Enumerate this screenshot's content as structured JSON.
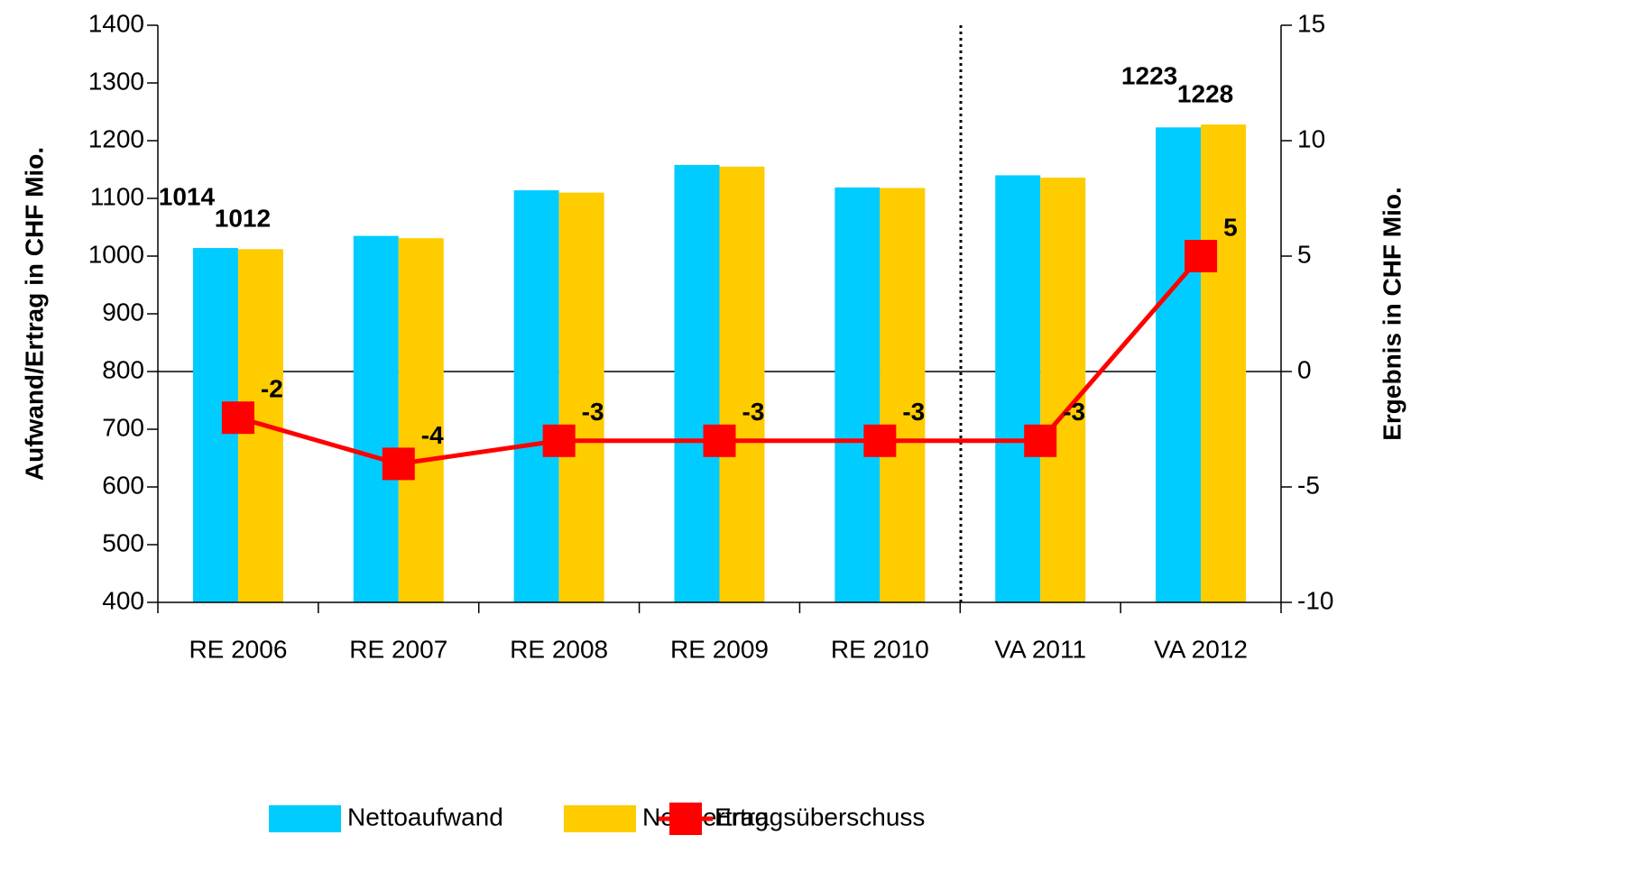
{
  "chart_data": {
    "type": "bar",
    "y_label": "Aufwand/Ertrag in CHF Mio.",
    "y2_label": "Ergebnis in CHF Mio.",
    "categories": [
      "RE 2006",
      "RE 2007",
      "RE 2008",
      "RE 2009",
      "RE 2010",
      "VA 2011",
      "VA 2012"
    ],
    "series": [
      {
        "name": "Nettoaufwand",
        "color": "#00ccff",
        "values": [
          1014,
          1035,
          1114,
          1158,
          1119,
          1140,
          1223
        ],
        "value_labels": [
          "1014",
          null,
          null,
          null,
          null,
          null,
          "1223"
        ]
      },
      {
        "name": "Nettoertrag",
        "color": "#ffcc00",
        "values": [
          1012,
          1031,
          1110,
          1155,
          1118,
          1136,
          1228
        ],
        "value_labels": [
          "1012",
          null,
          null,
          null,
          null,
          null,
          "1228"
        ]
      },
      {
        "name": "Ertragsüberschuss",
        "color": "#ff0000",
        "type": "line",
        "axis": "y2",
        "values": [
          -2,
          -4,
          -3,
          -3,
          -3,
          -3,
          5
        ]
      }
    ],
    "ylim": [
      400,
      1400
    ],
    "yticks": [
      400,
      500,
      600,
      700,
      800,
      900,
      1000,
      1100,
      1200,
      1300,
      1400
    ],
    "y2lim": [
      -10,
      15
    ],
    "y2ticks": [
      -10,
      -5,
      0,
      5,
      10,
      15
    ]
  }
}
